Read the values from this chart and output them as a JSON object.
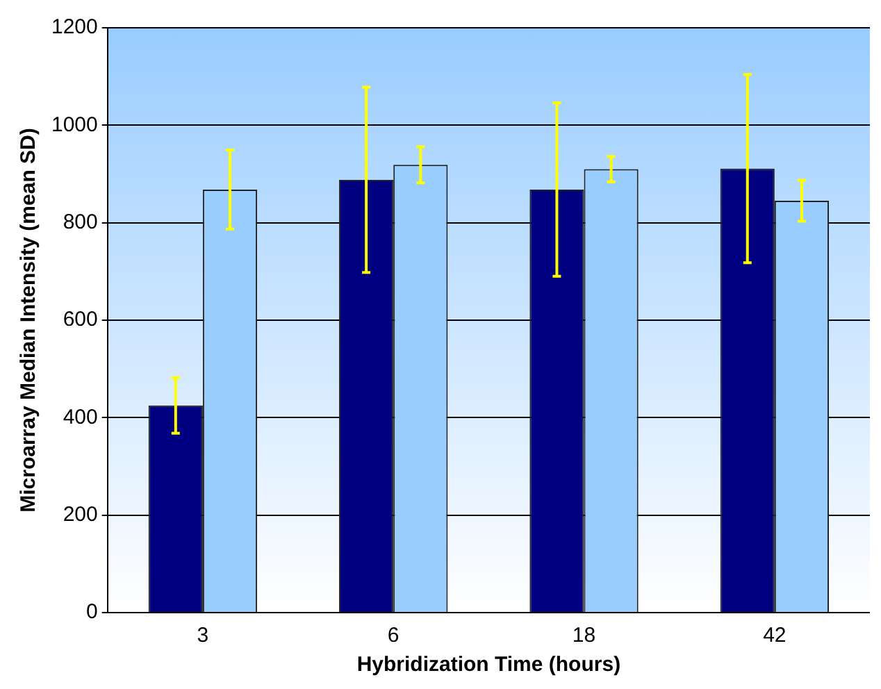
{
  "chart_data": {
    "type": "bar",
    "xlabel": "Hybridization Time (hours)",
    "ylabel": "Microarray Median Intensity (mean SD)",
    "categories": [
      "3",
      "6",
      "18",
      "42"
    ],
    "series": [
      {
        "color": "#000080",
        "values": [
          425,
          888,
          868,
          911
        ],
        "errors": [
          57,
          190,
          178,
          193
        ]
      },
      {
        "color": "#99ccff",
        "values": [
          868,
          919,
          910,
          845
        ],
        "errors": [
          81,
          37,
          26,
          42
        ]
      }
    ],
    "ylim": [
      0,
      1200
    ],
    "yticks": [
      0,
      200,
      400,
      600,
      800,
      1000,
      1200
    ],
    "grid": "y",
    "legend": false
  }
}
